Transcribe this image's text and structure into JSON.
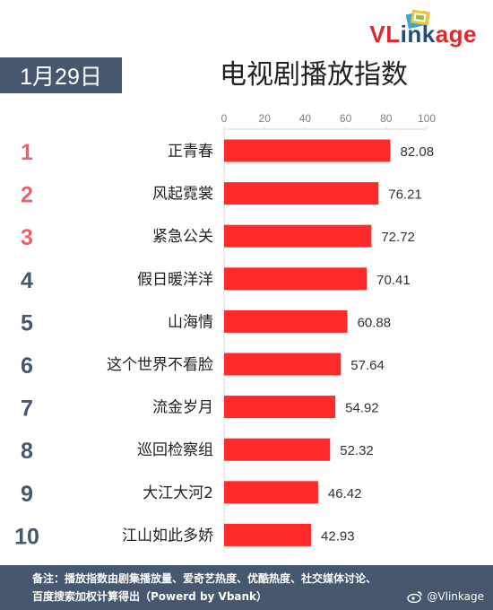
{
  "logo": {
    "text_red": "VL",
    "text_blue": "ink",
    "text_red2": "age"
  },
  "date_badge": "1月29日",
  "title": "电视剧播放指数",
  "chart_data": {
    "type": "bar",
    "orientation": "horizontal",
    "title": "电视剧播放指数",
    "ranks": [
      "1",
      "2",
      "3",
      "4",
      "5",
      "6",
      "7",
      "8",
      "9",
      "10"
    ],
    "categories": [
      "正青春",
      "风起霓裳",
      "紧急公关",
      "假日暖洋洋",
      "山海情",
      "这个世界不看脸",
      "流金岁月",
      "巡回检察组",
      "大江大河2",
      "江山如此多娇"
    ],
    "values": [
      82.08,
      76.21,
      72.72,
      70.41,
      60.88,
      57.64,
      54.92,
      52.32,
      46.42,
      42.93
    ],
    "value_labels": [
      "82.08",
      "76.21",
      "72.72",
      "70.41",
      "60.88",
      "57.64",
      "54.92",
      "52.32",
      "46.42",
      "42.93"
    ],
    "xlim": [
      0,
      100
    ],
    "xticks": [
      "0",
      "20",
      "40",
      "60",
      "80",
      "100"
    ],
    "axis_position": "top",
    "grid": false,
    "bar_color": "#ff2a2a",
    "rank_colors": {
      "top3": "#e8626a",
      "rest": "#46576e"
    }
  },
  "footer": {
    "line1": "备注：播放指数由剧集播放量、爱奇艺热度、优酷热度、社交媒体讨论、",
    "line2": "百度搜索加权计算得出（Powerd by Vbank）",
    "watermark": "@Vlinkage"
  }
}
